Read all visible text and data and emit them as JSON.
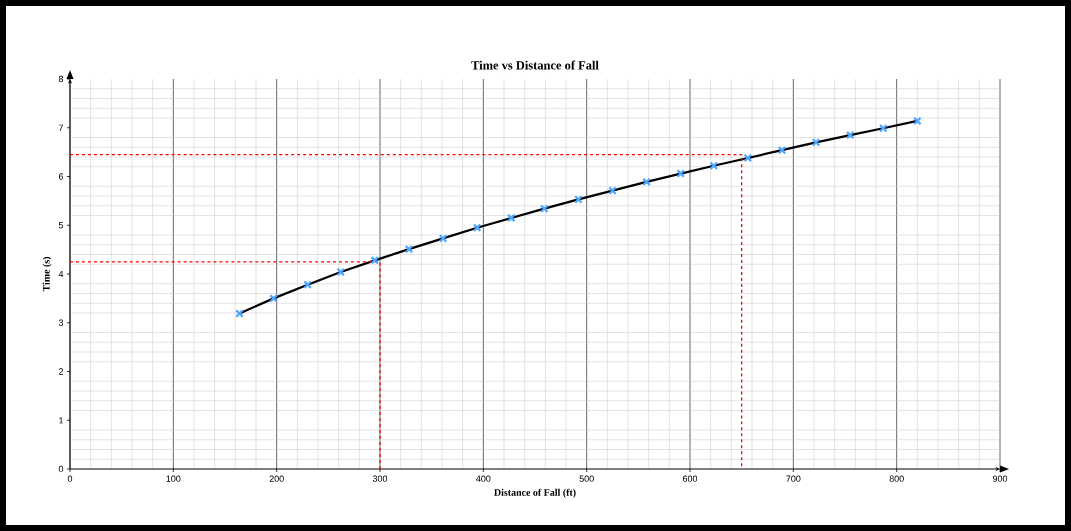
{
  "chart_data": {
    "type": "scatter",
    "title": "Time vs Distance of Fall",
    "xlabel": "Distance of Fall (ft)",
    "ylabel": "Time (s)",
    "xlim": [
      0,
      900
    ],
    "ylim": [
      0,
      8
    ],
    "xticks": [
      0,
      100,
      200,
      300,
      400,
      500,
      600,
      700,
      800,
      900
    ],
    "yticks": [
      0,
      1,
      2,
      3,
      4,
      5,
      6,
      7,
      8
    ],
    "grid": true,
    "series": [
      {
        "type": "line",
        "color": "#000000",
        "line_style": "solid",
        "marker": "none",
        "x": [
          164,
          197,
          230,
          262,
          295,
          328,
          361,
          394,
          427,
          459,
          492,
          525,
          558,
          591,
          623,
          656,
          689,
          722,
          755,
          787,
          820
        ],
        "values": [
          3.19,
          3.5,
          3.78,
          4.04,
          4.28,
          4.51,
          4.73,
          4.95,
          5.15,
          5.34,
          5.53,
          5.71,
          5.89,
          6.06,
          6.22,
          6.38,
          6.54,
          6.7,
          6.85,
          6.99,
          7.14
        ]
      },
      {
        "color": "#4da6ff",
        "marker": "cross",
        "x": [
          164,
          197,
          230,
          262,
          295,
          328,
          361,
          394,
          427,
          459,
          492,
          525,
          558,
          591,
          623,
          656,
          689,
          722,
          755,
          787,
          820
        ],
        "values": [
          3.19,
          3.5,
          3.78,
          4.04,
          4.28,
          4.51,
          4.73,
          4.95,
          5.15,
          5.34,
          5.53,
          5.71,
          5.89,
          6.06,
          6.22,
          6.38,
          6.54,
          6.7,
          6.85,
          6.99,
          7.14
        ]
      },
      {
        "type": "line",
        "color": "#ff0000",
        "line_style": "dashed",
        "marker": "none",
        "x": [
          0,
          300,
          300
        ],
        "values": [
          4.25,
          4.25,
          0
        ]
      },
      {
        "type": "line",
        "color": "#ff0000",
        "line_style": "dashed",
        "marker": "none",
        "x": [
          0,
          650,
          650
        ],
        "values": [
          6.45,
          6.45,
          0
        ]
      }
    ]
  }
}
